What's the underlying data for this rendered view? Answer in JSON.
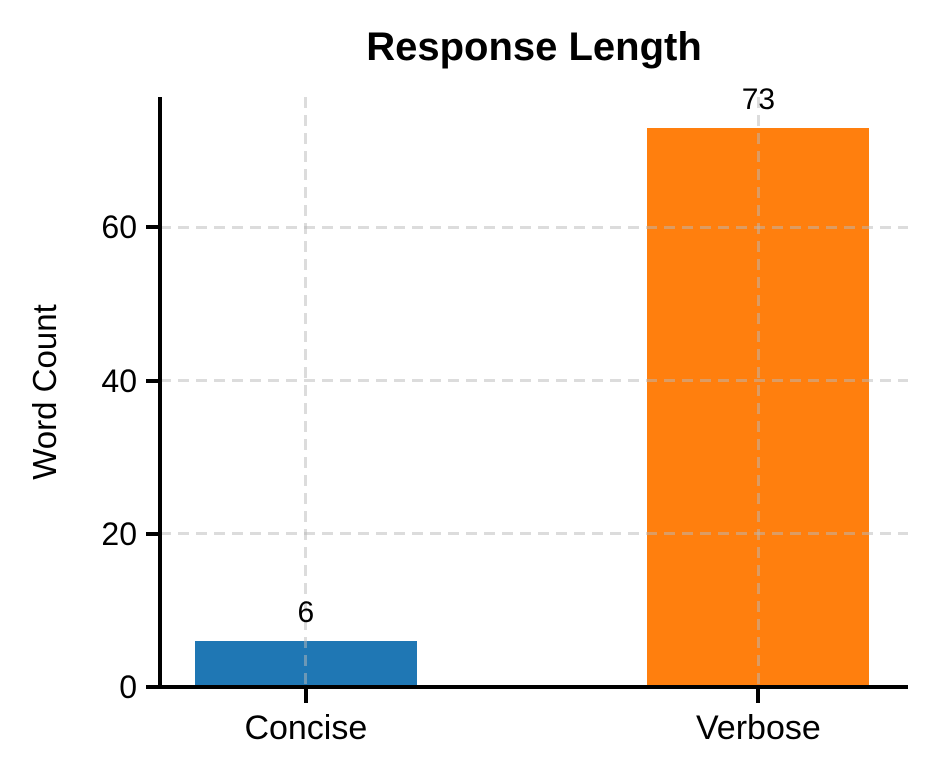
{
  "chart_data": {
    "type": "bar",
    "title": "Response Length",
    "xlabel": "",
    "ylabel": "Word Count",
    "categories": [
      "Concise",
      "Verbose"
    ],
    "values": [
      6,
      73
    ],
    "value_labels": [
      "6",
      "73"
    ],
    "bar_colors": [
      "#1f77b4",
      "#ff7f0e"
    ],
    "yticks": [
      0,
      20,
      40,
      60
    ],
    "ylim": [
      0,
      77
    ],
    "grid": {
      "style": "dashed",
      "axes": "both",
      "color": "#d9d9d9",
      "drawn_over_bars": true
    },
    "legend": "none",
    "spine_color": "#000000",
    "text_color": "#000000"
  }
}
